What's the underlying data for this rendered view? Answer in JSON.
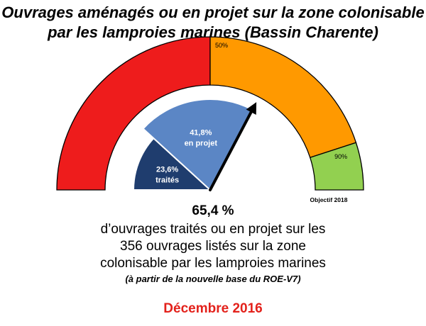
{
  "title_line1": "Ouvrages aménagés ou en projet sur la zone colonisable",
  "title_line2": "par les lamproies marines (Bassin Charente)",
  "chart_data": {
    "type": "gauge",
    "zones": [
      {
        "from": 0,
        "to": 50,
        "color": "#ee1c1c"
      },
      {
        "from": 50,
        "to": 90,
        "color": "#ff9900",
        "label": "50%"
      },
      {
        "from": 90,
        "to": 100,
        "color": "#92d050",
        "label": "90%"
      }
    ],
    "series": [
      {
        "label_value": "23,6%",
        "label_text": "traités",
        "value": 23.6,
        "color": "#1f3d6e"
      },
      {
        "label_value": "41,8%",
        "label_text": "en projet",
        "value": 41.8,
        "color": "#5b86c5"
      }
    ],
    "needle_value": 65.4,
    "objective_label": "Objectif 2018"
  },
  "summary": {
    "total": "65,4 %",
    "line1": "d’ouvrages traités ou en projet sur les",
    "line2": "356 ouvrages listés sur la zone",
    "line3": "colonisable par les lamproies marines",
    "note": "(à partir de la nouvelle base du ROE-V7)",
    "date": "Décembre 2016"
  }
}
